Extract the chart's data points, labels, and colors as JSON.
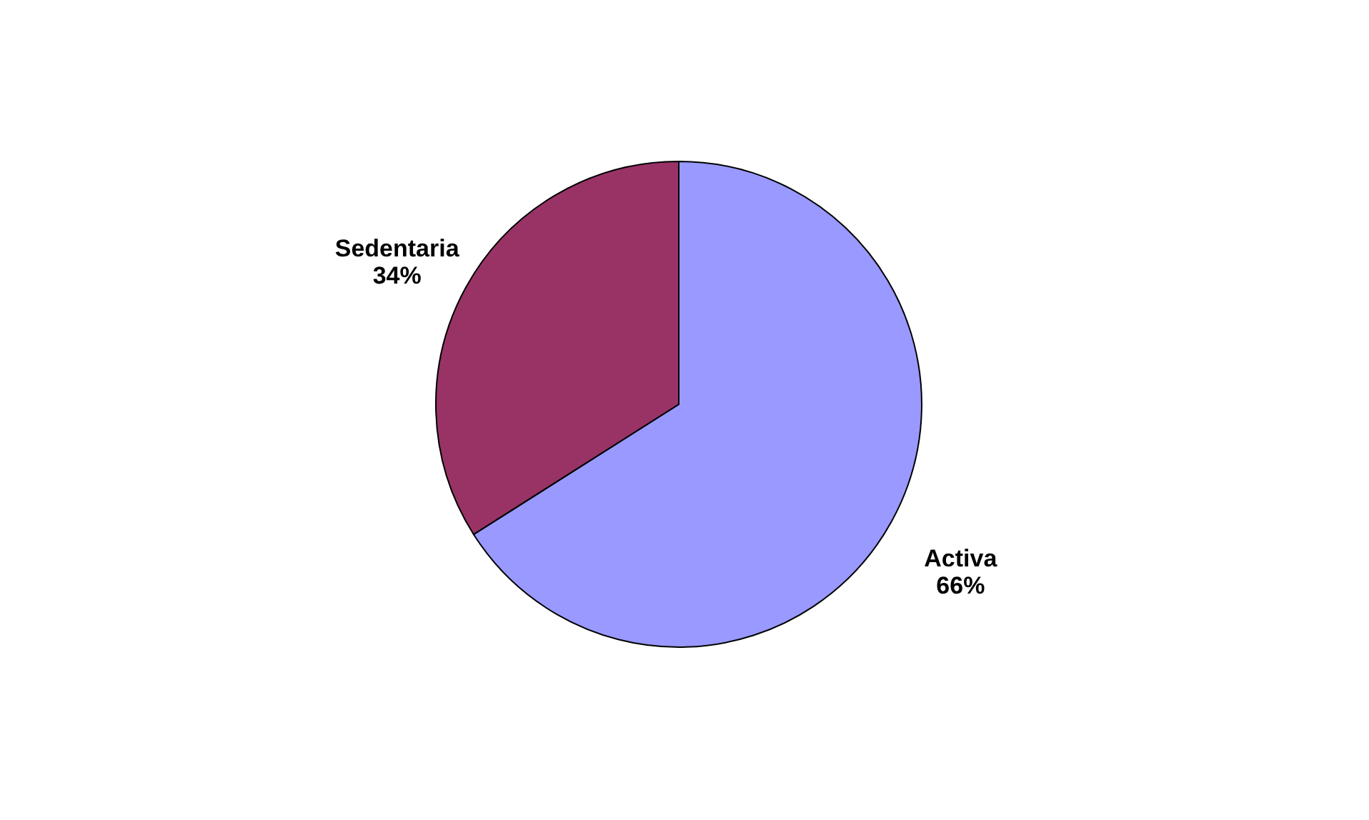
{
  "chart_data": {
    "type": "pie",
    "categories": [
      "Activa",
      "Sedentaria"
    ],
    "values": [
      66,
      34
    ],
    "value_labels": [
      "66%",
      "34%"
    ],
    "colors": [
      "#9999ff",
      "#993366"
    ],
    "legend": false
  }
}
